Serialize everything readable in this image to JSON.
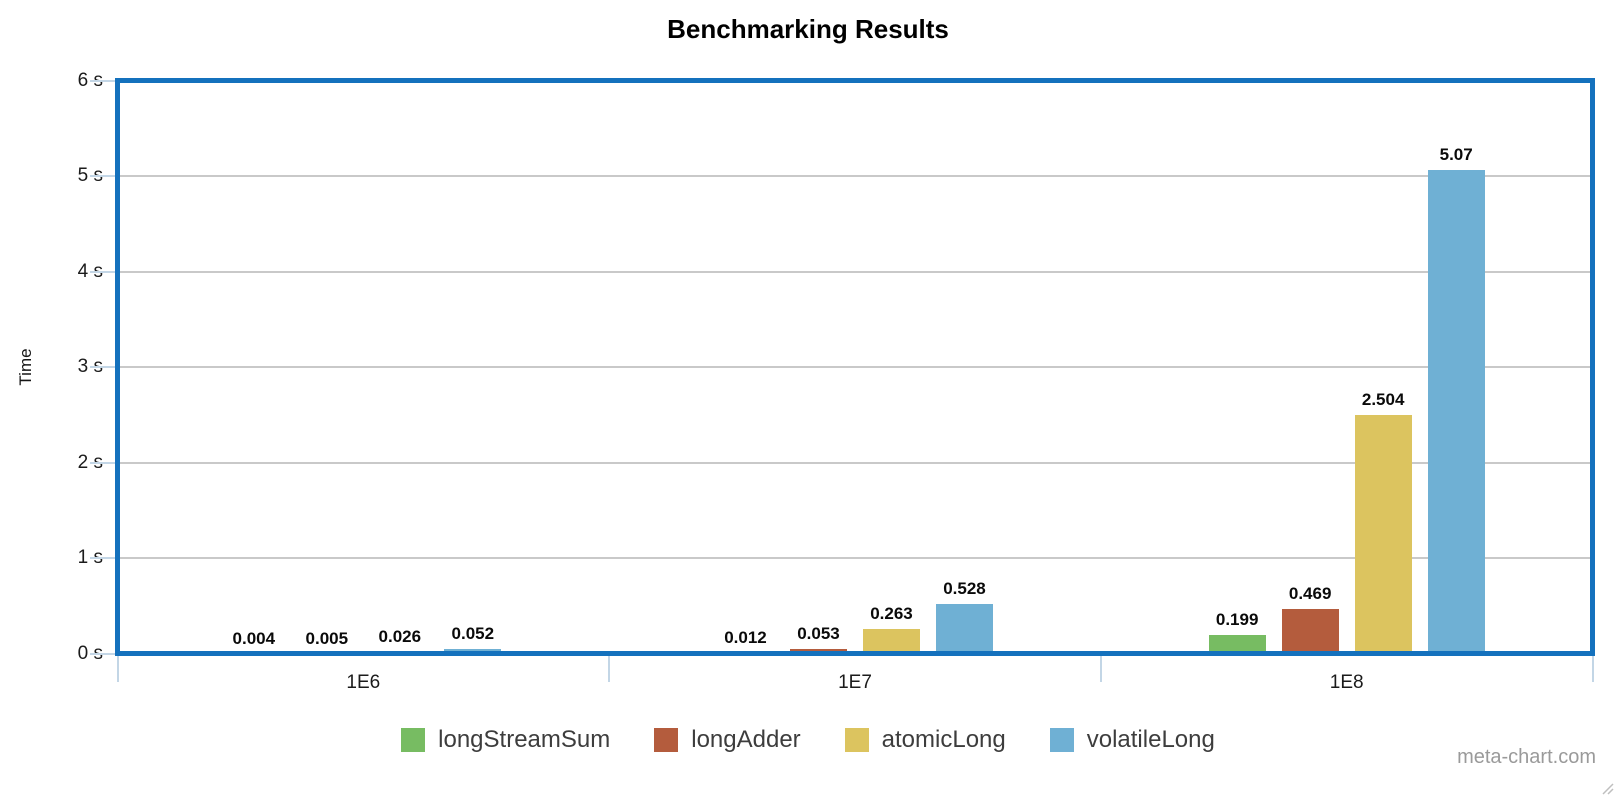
{
  "chart_data": {
    "type": "bar",
    "title": "Benchmarking Results",
    "ylabel": "Time",
    "xlabel": "",
    "categories": [
      "1E6",
      "1E7",
      "1E8"
    ],
    "series": [
      {
        "name": "longStreamSum",
        "color": "#77bc62",
        "values": [
          0.004,
          0.012,
          0.199
        ]
      },
      {
        "name": "longAdder",
        "color": "#b45c3d",
        "values": [
          0.005,
          0.053,
          0.469
        ]
      },
      {
        "name": "atomicLong",
        "color": "#dcc45f",
        "values": [
          0.026,
          0.263,
          2.504
        ]
      },
      {
        "name": "volatileLong",
        "color": "#6fb0d4",
        "values": [
          0.052,
          0.528,
          5.07
        ]
      }
    ],
    "y_tick_labels": [
      "0 s",
      "1 s",
      "2 s",
      "3 s",
      "4 s",
      "5 s",
      "6 s"
    ],
    "ylim": [
      0,
      6
    ],
    "grid": true,
    "legend_position": "bottom"
  },
  "colors": {
    "plot_border": "#1471bd",
    "gridline": "#c9c9c9",
    "tick": "#c3d6e6"
  },
  "watermark": "meta-chart.com"
}
